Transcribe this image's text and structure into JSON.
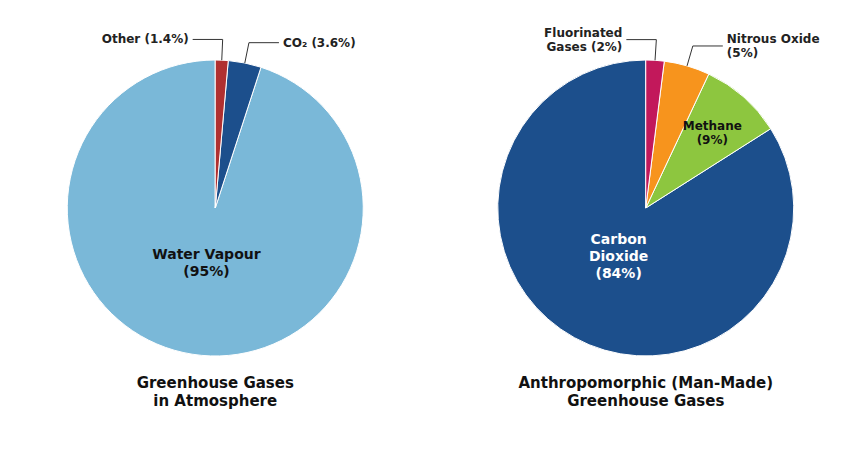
{
  "chart_data": [
    {
      "type": "pie",
      "title": "Greenhouse Gases\nin Atmosphere",
      "categories": [
        "Water Vapour\n(95%)",
        "CO₂ (3.6%)",
        "Other (1.4%)"
      ],
      "values": [
        95,
        3.6,
        1.4
      ],
      "colors": [
        "#7ab8d8",
        "#1c4f8c",
        "#b03030"
      ]
    },
    {
      "type": "pie",
      "title": "Anthropomorphic (Man-Made)\nGreenhouse Gases",
      "categories": [
        "Carbon\nDioxide\n(84%)",
        "Methane\n(9%)",
        "Nitrous Oxide\n(5%)",
        "Fluorinated\nGases (2%)"
      ],
      "values": [
        84,
        9,
        5,
        2
      ],
      "colors": [
        "#1c4f8c",
        "#8dc63f",
        "#f7941d",
        "#c2185b"
      ]
    }
  ]
}
